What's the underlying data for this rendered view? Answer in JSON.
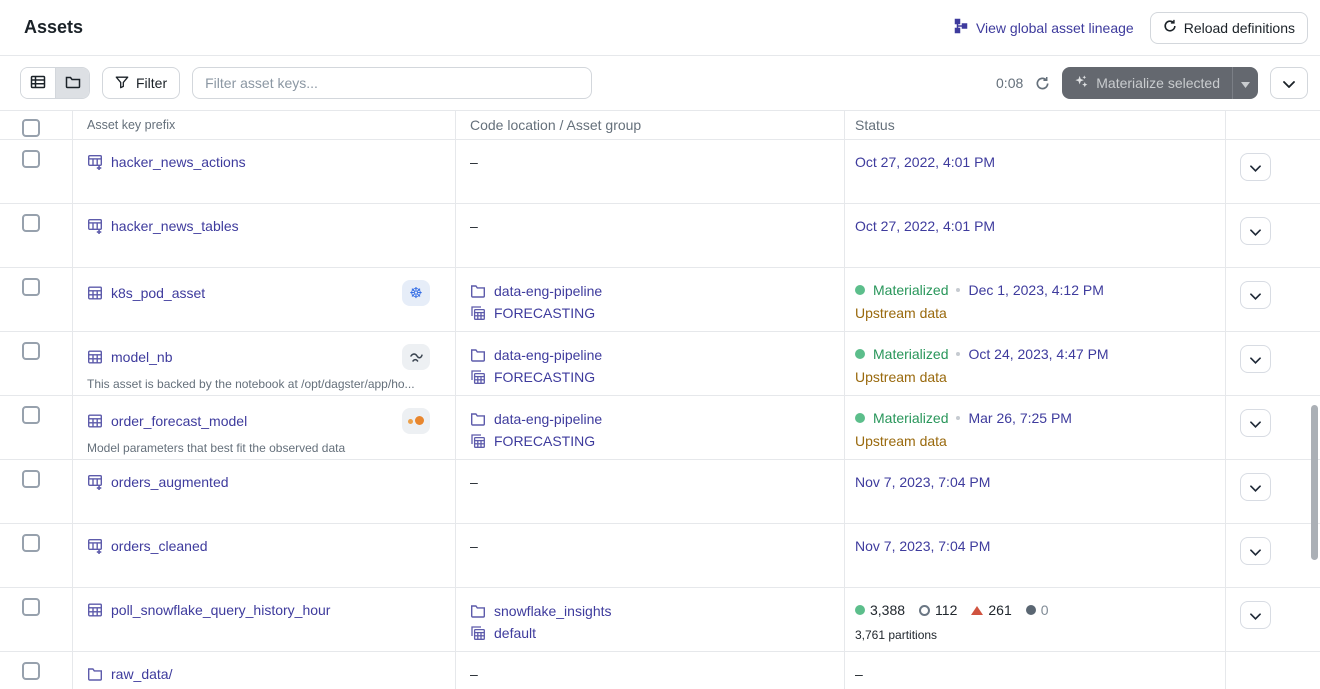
{
  "page": {
    "title": "Assets"
  },
  "header": {
    "lineage_link_label": "View global asset lineage",
    "reload_button_label": "Reload definitions"
  },
  "toolbar": {
    "filter_label": "Filter",
    "search_placeholder": "Filter asset keys...",
    "countdown": "0:08",
    "materialize_label": "Materialize selected"
  },
  "strings": {
    "empty": "–"
  },
  "table": {
    "columns": [
      "Asset key prefix",
      "Code location / Asset group",
      "Status"
    ],
    "rows": [
      {
        "key": "hacker_news_actions",
        "icon": "table-plus",
        "badge": null,
        "description": null,
        "location": null,
        "group": null,
        "expandable": true,
        "status": {
          "type": "date",
          "date": "Oct 27, 2022, 4:01 PM"
        }
      },
      {
        "key": "hacker_news_tables",
        "icon": "table-plus",
        "badge": null,
        "description": null,
        "location": null,
        "group": null,
        "expandable": true,
        "status": {
          "type": "date",
          "date": "Oct 27, 2022, 4:01 PM"
        }
      },
      {
        "key": "k8s_pod_asset",
        "icon": "table",
        "badge": "kubernetes",
        "description": null,
        "location": "data-eng-pipeline",
        "group": "FORECASTING",
        "expandable": true,
        "status": {
          "type": "materialized",
          "label": "Materialized",
          "date": "Dec 1, 2023, 4:12 PM",
          "note": "Upstream data"
        }
      },
      {
        "key": "model_nb",
        "icon": "table",
        "badge": "noteable",
        "description": "This asset is backed by the notebook at /opt/dagster/app/ho...",
        "location": "data-eng-pipeline",
        "group": "FORECASTING",
        "expandable": true,
        "status": {
          "type": "materialized",
          "label": "Materialized",
          "date": "Oct 24, 2023, 4:47 PM",
          "note": "Upstream data"
        }
      },
      {
        "key": "order_forecast_model",
        "icon": "table",
        "badge": "jupyter",
        "description": "Model parameters that best fit the observed data",
        "location": "data-eng-pipeline",
        "group": "FORECASTING",
        "expandable": true,
        "status": {
          "type": "materialized",
          "label": "Materialized",
          "date": "Mar 26, 7:25 PM",
          "note": "Upstream data"
        }
      },
      {
        "key": "orders_augmented",
        "icon": "table-plus",
        "badge": null,
        "description": null,
        "location": null,
        "group": null,
        "expandable": true,
        "status": {
          "type": "date",
          "date": "Nov 7, 2023, 7:04 PM"
        }
      },
      {
        "key": "orders_cleaned",
        "icon": "table-plus",
        "badge": null,
        "description": null,
        "location": null,
        "group": null,
        "expandable": true,
        "status": {
          "type": "date",
          "date": "Nov 7, 2023, 7:04 PM"
        }
      },
      {
        "key": "poll_snowflake_query_history_hour",
        "icon": "table",
        "badge": null,
        "description": null,
        "location": "snowflake_insights",
        "group": "default",
        "expandable": true,
        "status": {
          "type": "counts",
          "note": "3,761 partitions",
          "counts": [
            {
              "marker": "materialized-dot",
              "value": "3,388",
              "muted": false
            },
            {
              "marker": "observed-circle",
              "value": "112",
              "muted": false
            },
            {
              "marker": "failed-triangle",
              "value": "261",
              "muted": false
            },
            {
              "marker": "missing-dot",
              "value": "0",
              "muted": true
            }
          ]
        }
      },
      {
        "key": "raw_data/",
        "icon": "folder",
        "badge": null,
        "description": null,
        "location": null,
        "group": null,
        "expandable": false,
        "status": {
          "type": "dash"
        }
      }
    ]
  },
  "colors": {
    "link": "#3E3B9D",
    "green": "#28965A",
    "amber": "#99690D",
    "red": "#D0533F",
    "kubernetes_blue": "#326CE5",
    "jupyter_orange": "#E8862E",
    "materialize_button_bg": "#64686F"
  }
}
